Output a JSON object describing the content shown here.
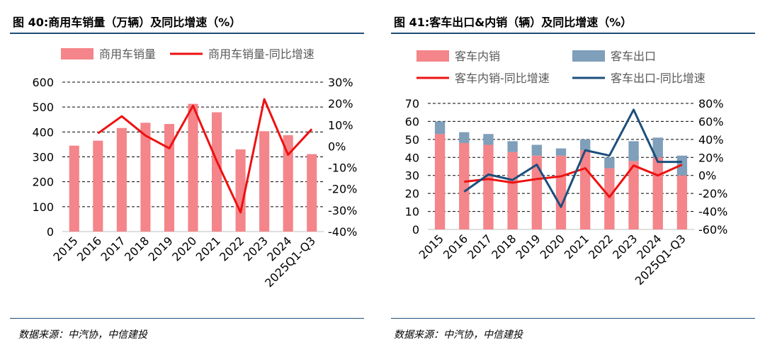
{
  "left": {
    "title": "图 40:商用车销量（万辆）及同比增速（%）",
    "source": "数据来源：中汽协，中信建投",
    "chart_data": {
      "type": "bar",
      "categories": [
        "2015",
        "2016",
        "2017",
        "2018",
        "2019",
        "2020",
        "2021",
        "2022",
        "2023",
        "2024",
        "2025Q1-Q3"
      ],
      "series": [
        {
          "name": "商用车销量",
          "kind": "bar",
          "axis": "left",
          "color": "#f4858a",
          "values": [
            345,
            365,
            416,
            437,
            432,
            513,
            479,
            330,
            403,
            387,
            311
          ]
        },
        {
          "name": "商用车销量-同比增速",
          "kind": "line",
          "axis": "right",
          "color": "#ee1111",
          "values": [
            null,
            6,
            14,
            5,
            -1,
            19,
            -7,
            -31,
            22,
            -4,
            8
          ]
        }
      ],
      "y_left": {
        "min": 0,
        "max": 600,
        "ticks": [
          0,
          100,
          200,
          300,
          400,
          500,
          600
        ],
        "labels": [
          "0",
          "100",
          "200",
          "300",
          "400",
          "500",
          "600"
        ]
      },
      "y_right": {
        "min": -40,
        "max": 30,
        "ticks": [
          -40,
          -30,
          -20,
          -10,
          0,
          10,
          20,
          30
        ],
        "labels": [
          "-40%",
          "-30%",
          "-20%",
          "-10%",
          "0%",
          "10%",
          "20%",
          "30%"
        ]
      },
      "gridlines": "dashed"
    }
  },
  "right": {
    "title": "图 41:客车出口&内销（辆）及同比增速（%）",
    "source": "数据来源：中汽协，中信建投",
    "chart_data": {
      "type": "bar",
      "stacked": true,
      "categories": [
        "2015",
        "2016",
        "2017",
        "2018",
        "2019",
        "2020",
        "2021",
        "2022",
        "2023",
        "2024",
        "2025Q1-Q3"
      ],
      "series": [
        {
          "name": "客车内销",
          "kind": "bar",
          "axis": "left",
          "color": "#f4858a",
          "values": [
            53,
            48,
            47,
            43,
            41,
            41,
            44,
            34,
            38,
            40,
            30
          ]
        },
        {
          "name": "客车出口",
          "kind": "bar",
          "axis": "left",
          "color": "#7f9fba",
          "values": [
            7,
            6,
            6,
            6,
            6,
            4,
            6,
            6,
            11,
            11,
            11
          ]
        },
        {
          "name": "客车内销-同比增速",
          "kind": "line",
          "axis": "right",
          "color": "#ee1111",
          "values": [
            null,
            -7,
            -4,
            -8,
            -4,
            -1,
            8,
            -24,
            11,
            0,
            12
          ]
        },
        {
          "name": "客车出口-同比增速",
          "kind": "line",
          "axis": "right",
          "color": "#1c4f7c",
          "values": [
            null,
            -18,
            1,
            -5,
            12,
            -35,
            28,
            22,
            73,
            15,
            15
          ]
        }
      ],
      "y_left": {
        "min": 0,
        "max": 70,
        "ticks": [
          0,
          10,
          20,
          30,
          40,
          50,
          60,
          70
        ],
        "labels": [
          "0",
          "10",
          "20",
          "30",
          "40",
          "50",
          "60",
          "70"
        ]
      },
      "y_right": {
        "min": -60,
        "max": 80,
        "ticks": [
          -60,
          -40,
          -20,
          0,
          20,
          40,
          60,
          80
        ],
        "labels": [
          "-60%",
          "-40%",
          "-20%",
          "0%",
          "20%",
          "40%",
          "60%",
          "80%"
        ]
      },
      "gridlines": "dashed"
    }
  }
}
